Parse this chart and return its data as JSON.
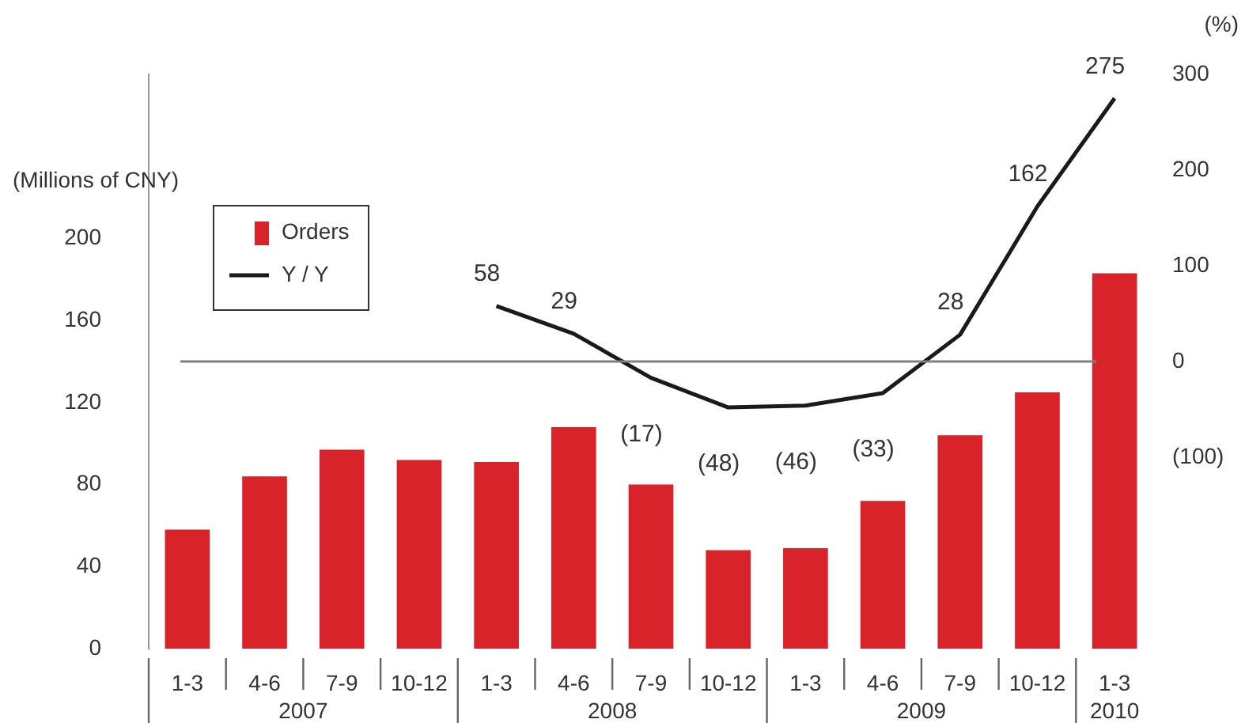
{
  "chart_data": {
    "type": "bar",
    "categories": [
      "1-3",
      "4-6",
      "7-9",
      "10-12",
      "1-3",
      "4-6",
      "7-9",
      "10-12",
      "1-3",
      "4-6",
      "7-9",
      "10-12",
      "1-3"
    ],
    "ylabel": "(Millions of CNY)",
    "y2label": "(%)",
    "series": [
      {
        "name": "Orders",
        "color": "#d9232a",
        "values": [
          58,
          84,
          97,
          92,
          91,
          108,
          80,
          48,
          49,
          72,
          104,
          125,
          183
        ]
      },
      {
        "name": "Y / Y",
        "type": "line",
        "axis": "y2",
        "color": "#1a1a1a",
        "values": [
          null,
          null,
          null,
          null,
          58,
          29,
          -17,
          -48,
          -46,
          -33,
          28,
          162,
          275
        ],
        "value_labels": [
          null,
          null,
          null,
          null,
          "58",
          "29",
          "(17)",
          "(48)",
          "(46)",
          "(33)",
          "28",
          "162",
          "275"
        ]
      }
    ],
    "ylim": [
      0,
      280
    ],
    "yticks": [
      0,
      40,
      80,
      120,
      160,
      200
    ],
    "y2lim": [
      -300,
      300
    ],
    "y2ticks": [
      {
        "value": -100,
        "label": "(100)"
      },
      0,
      100,
      200,
      300
    ],
    "ref_lines": [
      {
        "axis": "y2",
        "value": 0,
        "color": "#808080"
      }
    ],
    "annotations": [
      "2007",
      "2008",
      "2009",
      "2010"
    ],
    "legend": "top left",
    "grid": false,
    "marker": "none",
    "line_style": "solid"
  }
}
